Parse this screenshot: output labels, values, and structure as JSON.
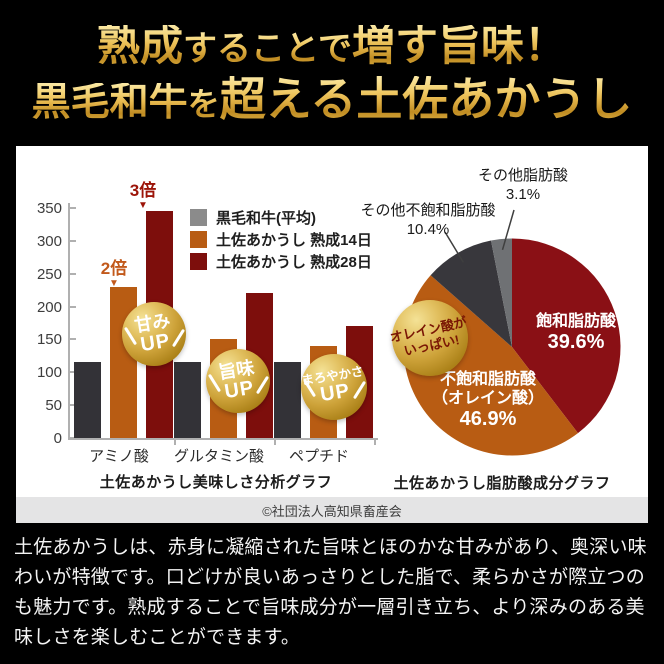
{
  "header": {
    "line1": {
      "a": "熟成",
      "b": "することで",
      "c": "増す旨味！"
    },
    "line2": {
      "a": "黒毛和牛",
      "b": "を",
      "c": "超える土佐あかうし"
    }
  },
  "credit": "©社団法人高知県畜産会",
  "description": "土佐あかうしは、赤身に凝縮された旨味とほのかな甘みがあり、奥深い味わいが特徴です。口どけが良いあっさりとした脂で、柔らかさが際立つのも魅力です。熟成することで旨味成分が一層引き立ち、より深みのある美味しさを楽しむことができます。",
  "colors": {
    "background": "#000000",
    "panel": "#ffffff",
    "credit_strip": "#e4e4e5",
    "gold_header_text": "#e8c25a",
    "badge_gold": "#c9a032",
    "kuroge_bar": "#333237",
    "kuroge_legend": "#8b8b8b",
    "aged14_orange": "#b85c13",
    "aged28_red": "#7d0e0c",
    "pie_red": "#8a1015",
    "pie_orange": "#b85c13",
    "pie_dark_gray": "#38373c",
    "pie_gray": "#6f7174"
  },
  "chart_data": [
    {
      "type": "bar",
      "title": "土佐あかうし美味しさ分析グラフ",
      "categories": [
        "アミノ酸",
        "グルタミン酸",
        "ペプチド"
      ],
      "series": [
        {
          "name": "黒毛和牛(平均)",
          "color": "#333237",
          "legend_color": "#8b8b8b",
          "values": [
            115,
            115,
            115
          ]
        },
        {
          "name": "土佐あかうし 熟成14日",
          "color": "#b85c13",
          "legend_color": "#b85c13",
          "values": [
            230,
            150,
            140
          ]
        },
        {
          "name": "土佐あかうし 熟成28日",
          "color": "#7d0e0c",
          "legend_color": "#7d0e0c",
          "values": [
            345,
            220,
            170
          ]
        }
      ],
      "ylim": [
        0,
        350
      ],
      "yticks": [
        0,
        50,
        100,
        150,
        200,
        250,
        300,
        350
      ],
      "grid": false,
      "legend_position": "top-right",
      "annotations": [
        {
          "text": "2倍",
          "marker": "▼",
          "color": "#c2591b",
          "target": "アミノ酸 土佐あかうし 熟成14日"
        },
        {
          "text": "3倍",
          "marker": "▼",
          "color": "#9c1408",
          "target": "アミノ酸 土佐あかうし 熟成28日"
        }
      ],
      "badges": [
        {
          "top": "甘み",
          "bottom": "UP"
        },
        {
          "top": "旨味",
          "bottom": "UP"
        },
        {
          "top": "まろやかさ",
          "bottom": "UP"
        }
      ]
    },
    {
      "type": "pie",
      "title": "土佐あかうし脂肪酸成分グラフ",
      "start_angle_deg": 0,
      "direction": "clockwise",
      "slices": [
        {
          "label": "飽和脂肪酸",
          "pct": 39.6,
          "pct_label": "39.6%",
          "color": "#8a1015",
          "display_lines": [
            "飽和脂肪酸"
          ],
          "label_pos": "inside"
        },
        {
          "label": "不飽和脂肪酸（オレイン酸）",
          "pct": 46.9,
          "pct_label": "46.9%",
          "color": "#b85c13",
          "display_lines": [
            "不飽和脂肪酸",
            "（オレイン酸）"
          ],
          "label_pos": "inside"
        },
        {
          "label": "その他不飽和脂肪酸",
          "pct": 10.4,
          "pct_label": "10.4%",
          "color": "#38373c",
          "display_lines": [
            "その他不飽和脂肪酸"
          ],
          "label_pos": "outside"
        },
        {
          "label": "その他脂肪酸",
          "pct": 3.1,
          "pct_label": "3.1%",
          "color": "#6f7174",
          "display_lines": [
            "その他脂肪酸"
          ],
          "label_pos": "outside"
        }
      ],
      "badge": {
        "line1": "オレイン酸が",
        "line2": "いっぱい!"
      }
    }
  ]
}
